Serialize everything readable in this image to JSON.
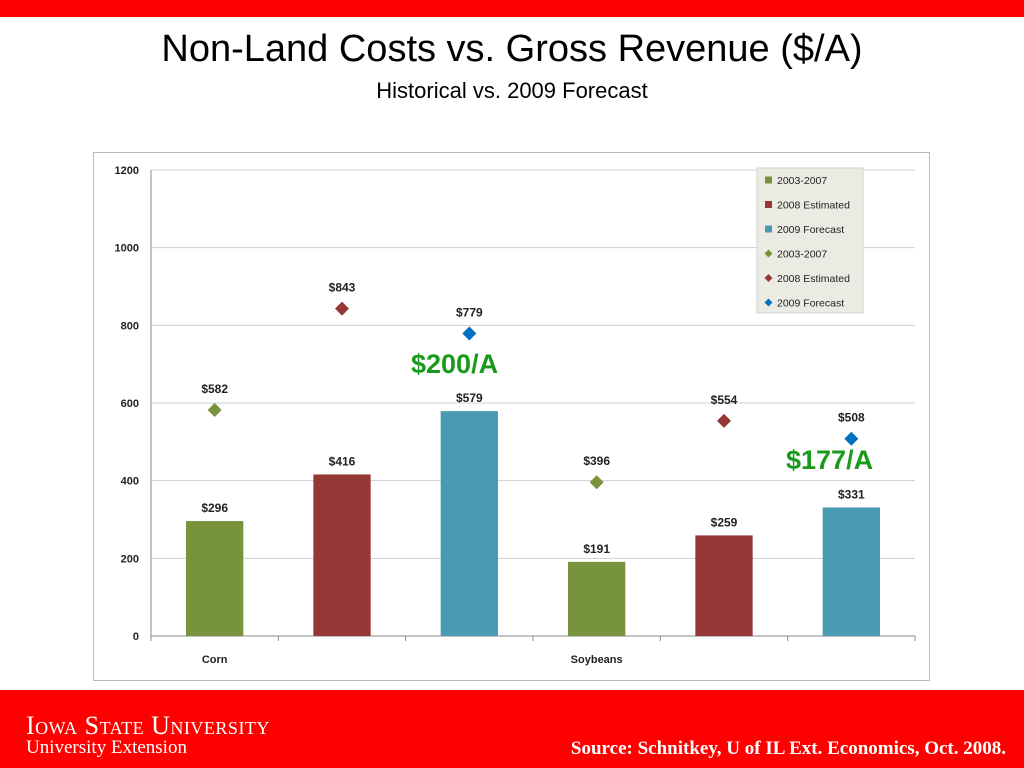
{
  "title": "Non-Land Costs vs. Gross Revenue ($/A)",
  "subtitle": "Historical vs. 2009 Forecast",
  "callouts": [
    "$200/A",
    "$177/A"
  ],
  "footer": {
    "university": "Iowa State University",
    "extension": "University Extension",
    "source": "Source:  Schnitkey, U of IL Ext. Economics, Oct. 2008."
  },
  "colors": {
    "banner": "#ff0000",
    "green": "#77933c",
    "red": "#953735",
    "blue": "#4a9ab3",
    "diamond_green": "#77933c",
    "diamond_red": "#953735",
    "diamond_blue": "#0070c0",
    "callout": "#1a9a1a"
  },
  "chart_data": {
    "type": "bar",
    "categories": [
      "Corn",
      "Soybeans"
    ],
    "ylim": [
      0,
      1200
    ],
    "yticks": [
      0,
      200,
      400,
      600,
      800,
      1000,
      1200
    ],
    "grid": true,
    "legend_position": "top-right",
    "bar_series": [
      {
        "name": "2003-2007",
        "values": [
          296,
          191
        ],
        "labels": [
          "$296",
          "$191"
        ],
        "color": "#77933c"
      },
      {
        "name": "2008 Estimated",
        "values": [
          416,
          259
        ],
        "labels": [
          "$416",
          "$259"
        ],
        "color": "#953735"
      },
      {
        "name": "2009 Forecast",
        "values": [
          579,
          331
        ],
        "labels": [
          "$579",
          "$331"
        ],
        "color": "#4a9ab3"
      }
    ],
    "marker_series": [
      {
        "name": "2003-2007",
        "values": [
          582,
          396
        ],
        "labels": [
          "$582",
          "$396"
        ],
        "color": "#77933c"
      },
      {
        "name": "2008 Estimated",
        "values": [
          843,
          554
        ],
        "labels": [
          "$843",
          "$554"
        ],
        "color": "#953735"
      },
      {
        "name": "2009 Forecast",
        "values": [
          779,
          508
        ],
        "labels": [
          "$779",
          "$508"
        ],
        "color": "#0070c0"
      }
    ]
  }
}
